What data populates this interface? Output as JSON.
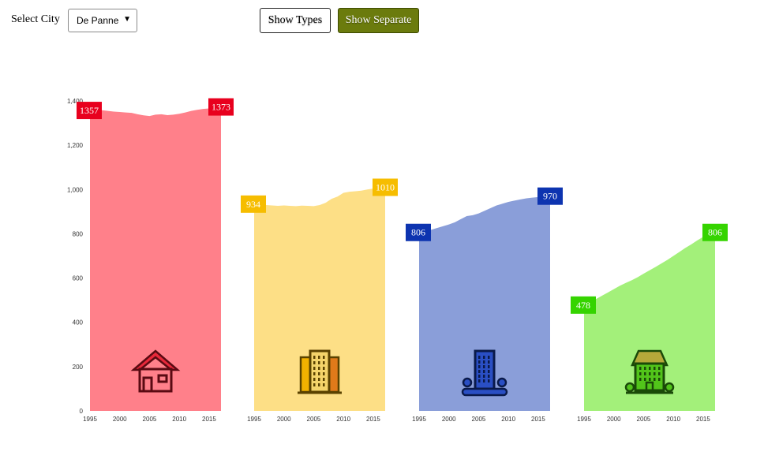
{
  "controls": {
    "select_label": "Select City",
    "city_value": "De Panne",
    "show_types_label": "Show Types",
    "show_separate_label": "Show Separate"
  },
  "chart_data": {
    "type": "area",
    "ylim": [
      0,
      1400
    ],
    "y_ticks": [
      0,
      200,
      400,
      600,
      800,
      1000,
      1200,
      1400
    ],
    "y_tick_labels": [
      "0",
      "200",
      "400",
      "600",
      "800",
      "1,000",
      "1,200",
      "1,400"
    ],
    "x_ticks": [
      1995,
      2000,
      2005,
      2010,
      2015
    ],
    "x_tick_labels": [
      "1995",
      "2000",
      "2005",
      "2010",
      "2015"
    ],
    "x": [
      1995,
      1996,
      1997,
      1998,
      1999,
      2000,
      2001,
      2002,
      2003,
      2004,
      2005,
      2006,
      2007,
      2008,
      2009,
      2010,
      2011,
      2012,
      2013,
      2014,
      2015,
      2016,
      2017
    ],
    "series": [
      {
        "icon": "house-icon",
        "color": "#ff808a",
        "label_color": "#e8001e",
        "icon_color": "#e8283a",
        "values": [
          1357,
          1360,
          1358,
          1355,
          1352,
          1350,
          1348,
          1346,
          1340,
          1335,
          1332,
          1338,
          1340,
          1336,
          1338,
          1342,
          1348,
          1355,
          1360,
          1364,
          1366,
          1370,
          1373
        ],
        "start_label": "1357",
        "end_label": "1373"
      },
      {
        "icon": "apartment-icon",
        "color": "#fddf86",
        "label_color": "#f6bd00",
        "icon_color": "#f2b100",
        "values": [
          934,
          932,
          930,
          928,
          926,
          928,
          926,
          925,
          927,
          926,
          925,
          930,
          940,
          958,
          968,
          985,
          990,
          992,
          995,
          1000,
          1004,
          1008,
          1010
        ],
        "start_label": "934",
        "end_label": "1010"
      },
      {
        "icon": "building-icon",
        "color": "#8a9ed9",
        "label_color": "#0d34b0",
        "icon_color": "#2a4fc4",
        "values": [
          806,
          812,
          818,
          826,
          834,
          842,
          852,
          866,
          880,
          884,
          892,
          904,
          916,
          928,
          936,
          944,
          950,
          955,
          960,
          963,
          966,
          968,
          970
        ],
        "start_label": "806",
        "end_label": "970"
      },
      {
        "icon": "villa-icon",
        "color": "#a3f07a",
        "label_color": "#35d400",
        "icon_color": "#52c41a",
        "values": [
          478,
          490,
          505,
          520,
          535,
          550,
          565,
          578,
          590,
          604,
          620,
          635,
          650,
          666,
          682,
          700,
          718,
          736,
          752,
          770,
          786,
          798,
          806
        ],
        "start_label": "478",
        "end_label": "806"
      }
    ]
  }
}
